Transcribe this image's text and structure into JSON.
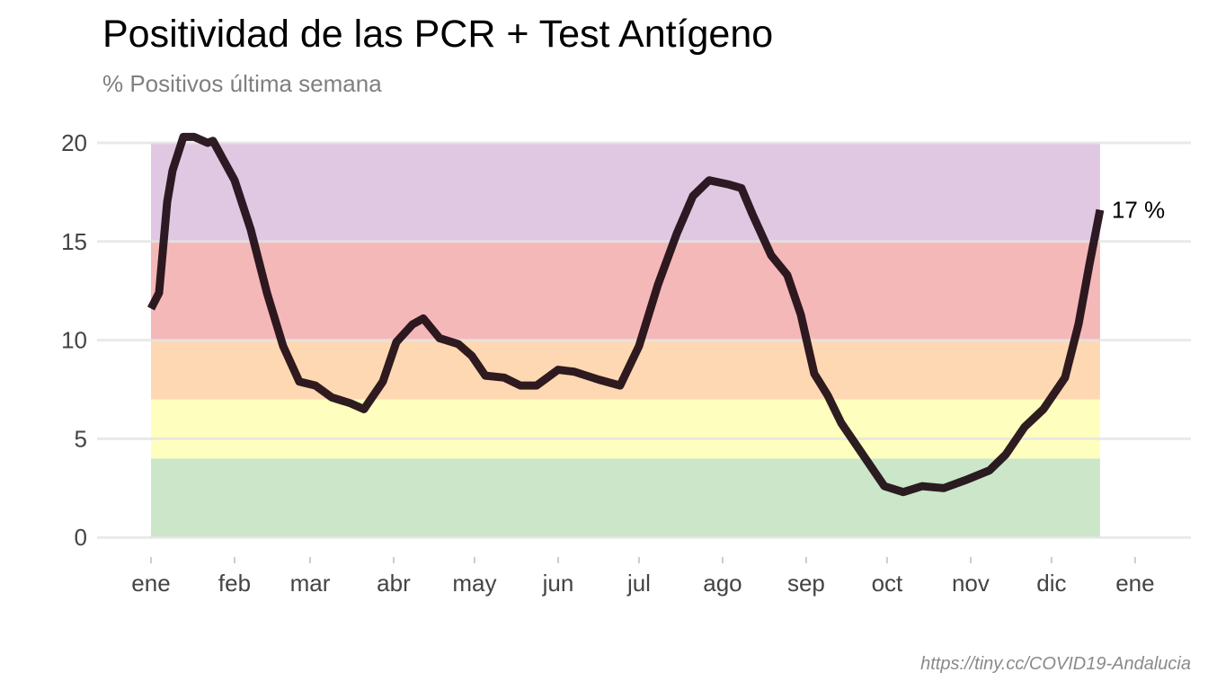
{
  "chart_data": {
    "type": "line",
    "title": "Positividad de las PCR + Test Antígeno",
    "subtitle": "% Positivos última semana",
    "source": "https://tiny.cc/COVID19-Andalucia",
    "xlim": [
      -20,
      385.7
    ],
    "xticks": [
      {
        "value": 0,
        "label": "ene"
      },
      {
        "value": 31,
        "label": "feb"
      },
      {
        "value": 59,
        "label": "mar"
      },
      {
        "value": 90,
        "label": "abr"
      },
      {
        "value": 120,
        "label": "may"
      },
      {
        "value": 151,
        "label": "jun"
      },
      {
        "value": 181,
        "label": "jul"
      },
      {
        "value": 212,
        "label": "ago"
      },
      {
        "value": 243,
        "label": "sep"
      },
      {
        "value": 273,
        "label": "oct"
      },
      {
        "value": 304,
        "label": "nov"
      },
      {
        "value": 334,
        "label": "dic"
      },
      {
        "value": 365,
        "label": "ene"
      }
    ],
    "ylim": [
      -0.4,
      20.5
    ],
    "yticks": [
      0,
      5,
      10,
      15,
      20
    ],
    "grid": true,
    "bands": [
      {
        "from": 0,
        "to": 4,
        "color": "#cbe6c9"
      },
      {
        "from": 4,
        "to": 7,
        "color": "#fefebe"
      },
      {
        "from": 7,
        "to": 10,
        "color": "#fed8b2"
      },
      {
        "from": 10,
        "to": 15,
        "color": "#f5b8b9"
      },
      {
        "from": 15,
        "to": 20,
        "color": "#e0c8e3"
      }
    ],
    "x": [
      0,
      3,
      6,
      8,
      12,
      16,
      21,
      23,
      27,
      31,
      37,
      43,
      49,
      55,
      61,
      67,
      74,
      79,
      86,
      91,
      97,
      101,
      107,
      114,
      119,
      124,
      131,
      137,
      143,
      151,
      157,
      166,
      174,
      181,
      188,
      195,
      201,
      207,
      214,
      219,
      223,
      230,
      236,
      241,
      246,
      251,
      256,
      262,
      267,
      272,
      279,
      286,
      294,
      302,
      311,
      317,
      324,
      331,
      339,
      344,
      348,
      352
    ],
    "series": [
      {
        "color": "#1c0a12",
        "values": [
          11.6,
          12.4,
          17.0,
          18.6,
          20.3,
          20.3,
          20.0,
          20.1,
          19.1,
          18.1,
          15.6,
          12.4,
          9.7,
          7.9,
          7.7,
          7.1,
          6.8,
          6.5,
          7.9,
          9.9,
          10.8,
          11.1,
          10.1,
          9.8,
          9.2,
          8.2,
          8.1,
          7.7,
          7.7,
          8.5,
          8.4,
          8.0,
          7.7,
          9.7,
          12.8,
          15.4,
          17.3,
          18.1,
          17.9,
          17.7,
          16.4,
          14.3,
          13.3,
          11.3,
          8.3,
          7.2,
          5.8,
          4.6,
          3.6,
          2.6,
          2.3,
          2.6,
          2.5,
          2.9,
          3.4,
          4.2,
          5.6,
          6.5,
          8.1,
          10.8,
          13.8,
          16.6
        ],
        "value_labels": [
          null,
          null,
          null,
          null,
          null,
          null,
          null,
          null,
          null,
          null,
          null,
          null,
          null,
          null,
          null,
          null,
          null,
          null,
          null,
          null,
          null,
          null,
          null,
          null,
          null,
          null,
          null,
          null,
          null,
          null,
          null,
          null,
          null,
          null,
          null,
          null,
          null,
          null,
          null,
          null,
          null,
          null,
          null,
          null,
          null,
          null,
          null,
          null,
          null,
          null,
          null,
          null,
          null,
          null,
          null,
          null,
          null,
          null,
          null,
          null,
          null,
          "17 %"
        ]
      }
    ]
  }
}
